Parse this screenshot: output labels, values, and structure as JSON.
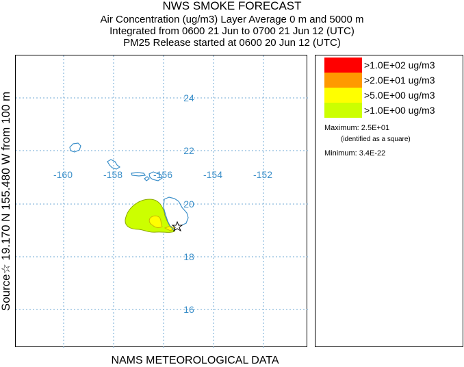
{
  "titles": {
    "line1": "NWS SMOKE FORECAST",
    "line2": "Air Concentration (ug/m3) Layer Average    0 m and  5000 m",
    "line3": "Integrated from 0600 21 Jun to 0700 21 Jun 12 (UTC)",
    "line4": "PM25 Release started at 0600 20 Jun 12 (UTC)"
  },
  "side_label": "Source☆ 19.170  N 155.480  W     from   100 m",
  "bottom_label": "NAMS METEOROLOGICAL DATA",
  "map": {
    "lon_labels": [
      "-160",
      "-158",
      "-156",
      "-154",
      "-152"
    ],
    "lat_labels": [
      "24",
      "22",
      "20",
      "18",
      "16"
    ],
    "grid_color": "#6fa8d6",
    "label_color": "#3b8fc9",
    "coast_color": "#3b8fc9",
    "source_marker": "star-icon"
  },
  "legend": {
    "items": [
      {
        "label": ">1.0E+02 ug/m3",
        "color": "#ff0000"
      },
      {
        "label": ">2.0E+01 ug/m3",
        "color": "#ff9900"
      },
      {
        "label": ">5.0E+00 ug/m3",
        "color": "#ffff00"
      },
      {
        "label": ">1.0E+00 ug/m3",
        "color": "#ccff00"
      }
    ],
    "maximum": "Maximum: 2.5E+01",
    "maximum_note": "(identified as a square)",
    "minimum": "Minimum: 3.4E-22"
  }
}
